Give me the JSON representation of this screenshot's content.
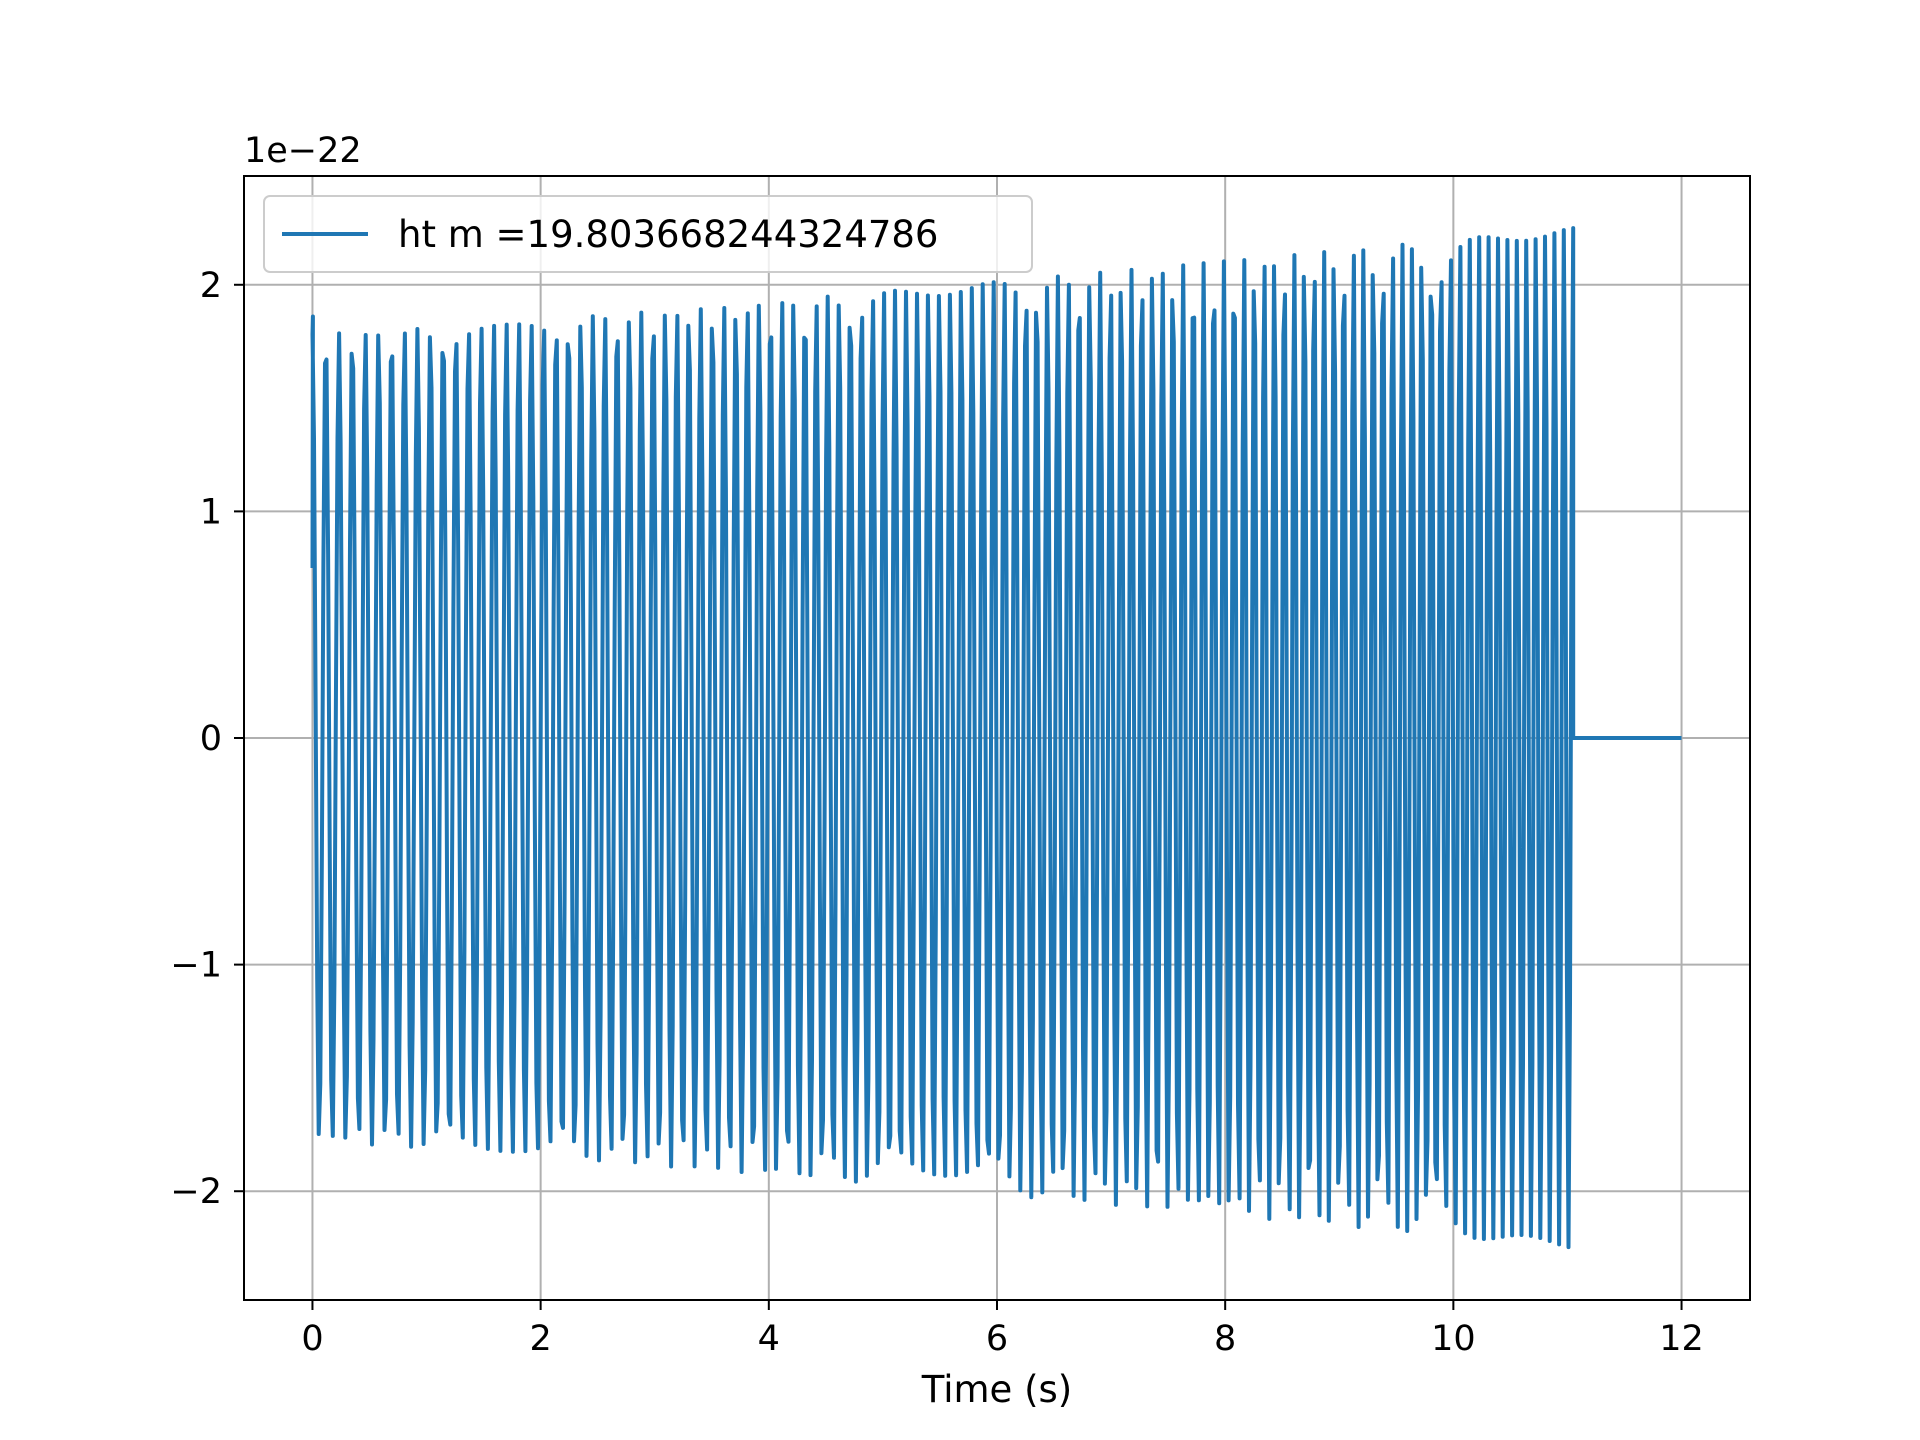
{
  "chart_data": {
    "type": "line",
    "xlabel": "Time (s)",
    "ylabel": "",
    "y_offset_text": "1e−22",
    "xlim": [
      -0.6,
      12.6
    ],
    "ylim": [
      -2.48,
      2.48
    ],
    "x_ticks": [
      0,
      2,
      4,
      6,
      8,
      10,
      12
    ],
    "y_ticks": [
      -2,
      -1,
      0,
      1,
      2
    ],
    "x_tick_labels": [
      "0",
      "2",
      "4",
      "6",
      "8",
      "10",
      "12"
    ],
    "y_tick_labels": [
      "−2",
      "−1",
      "0",
      "1",
      "2"
    ],
    "grid": true,
    "legend_position": "upper-left",
    "series": [
      {
        "name": "ht m =19.803668244324786",
        "color": "#1f77b4",
        "signal": {
          "kind": "chirp",
          "t_start": 0.0,
          "t_end": 11.05,
          "t_zero_end": 12.0,
          "amplitude_start": 1.78,
          "amplitude_end": 2.25,
          "initial_value": 0.75,
          "initial_peak": 1.86,
          "cycles_total": 115,
          "samples_per_cycle": 7
        }
      }
    ]
  }
}
